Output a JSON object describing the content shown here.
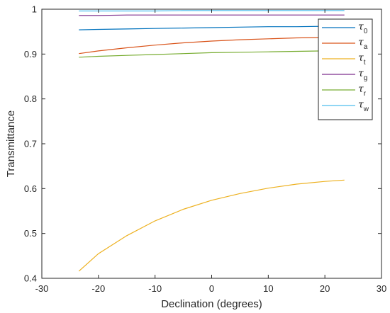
{
  "chart_data": {
    "type": "line",
    "title": "",
    "xlabel": "Declination (degrees)",
    "ylabel": "Transmittance",
    "xlim": [
      -30,
      30
    ],
    "ylim": [
      0.4,
      1
    ],
    "xticks": [
      "-30",
      "-20",
      "-10",
      "0",
      "10",
      "20",
      "30"
    ],
    "yticks": [
      "0.4",
      "0.5",
      "0.6",
      "0.7",
      "0.8",
      "0.9",
      "1"
    ],
    "grid": false,
    "legend_position": "top-right",
    "x": [
      -23.45,
      -20,
      -15,
      -10,
      -5,
      0,
      5,
      10,
      15,
      20,
      23.45
    ],
    "series": [
      {
        "name": "τ",
        "subscript": "0",
        "color": "#0072BD",
        "values": [
          0.954,
          0.955,
          0.956,
          0.957,
          0.958,
          0.959,
          0.96,
          0.961,
          0.961,
          0.962,
          0.962
        ]
      },
      {
        "name": "τ",
        "subscript": "a",
        "color": "#D95319",
        "values": [
          0.901,
          0.907,
          0.914,
          0.92,
          0.925,
          0.929,
          0.932,
          0.934,
          0.936,
          0.937,
          0.937
        ]
      },
      {
        "name": "τ",
        "subscript": "t",
        "color": "#EDB120",
        "values": [
          0.416,
          0.455,
          0.495,
          0.528,
          0.554,
          0.574,
          0.589,
          0.601,
          0.61,
          0.616,
          0.619
        ]
      },
      {
        "name": "τ",
        "subscript": "g",
        "color": "#7E2F8E",
        "values": [
          0.986,
          0.986,
          0.987,
          0.987,
          0.987,
          0.987,
          0.987,
          0.987,
          0.987,
          0.987,
          0.987
        ]
      },
      {
        "name": "τ",
        "subscript": "r",
        "color": "#77AC30",
        "values": [
          0.893,
          0.895,
          0.897,
          0.899,
          0.901,
          0.903,
          0.904,
          0.905,
          0.906,
          0.907,
          0.907
        ]
      },
      {
        "name": "τ",
        "subscript": "w",
        "color": "#4DBEEE",
        "values": [
          0.996,
          0.996,
          0.996,
          0.996,
          0.997,
          0.997,
          0.997,
          0.997,
          0.997,
          0.997,
          0.997
        ]
      }
    ]
  }
}
